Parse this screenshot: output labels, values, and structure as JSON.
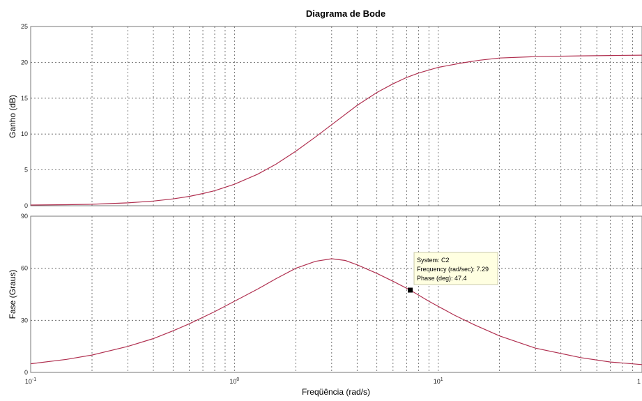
{
  "chart_data": {
    "type": "line",
    "title": "Diagrama de Bode",
    "xlabel": "Freqüência (rad/s)",
    "xscale": "log",
    "xlim": [
      0.1,
      100
    ],
    "x_ticks": [
      {
        "base": "10",
        "exp": "-1"
      },
      {
        "base": "10",
        "exp": "0"
      },
      {
        "base": "10",
        "exp": "1"
      },
      {
        "base": "1",
        "exp": ""
      }
    ],
    "grid": true,
    "line_color": "#b03050",
    "panels": [
      {
        "ylabel": "Ganho (dB)",
        "ylim": [
          0,
          25
        ],
        "yticks": [
          0,
          5,
          10,
          15,
          20,
          25
        ],
        "series": [
          {
            "x": [
              0.1,
              0.15,
              0.2,
              0.3,
              0.4,
              0.5,
              0.6,
              0.7,
              0.8,
              1,
              1.3,
              1.6,
              2,
              2.5,
              3,
              4,
              5,
              6,
              7,
              8,
              10,
              13,
              16,
              20,
              30,
              50,
              70,
              100
            ],
            "y": [
              0.1,
              0.15,
              0.2,
              0.4,
              0.65,
              0.95,
              1.3,
              1.7,
              2.1,
              3.0,
              4.4,
              5.8,
              7.6,
              9.6,
              11.3,
              14.0,
              15.8,
              17.0,
              17.9,
              18.5,
              19.3,
              19.9,
              20.3,
              20.6,
              20.8,
              20.9,
              20.95,
              21.0
            ]
          }
        ]
      },
      {
        "ylabel": "Fase (Graus)",
        "ylim": [
          0,
          90
        ],
        "yticks": [
          0,
          30,
          60,
          90
        ],
        "series": [
          {
            "x": [
              0.1,
              0.15,
              0.2,
              0.3,
              0.4,
              0.5,
              0.6,
              0.8,
              1,
              1.3,
              1.6,
              2,
              2.5,
              3,
              3.5,
              4,
              5,
              6,
              7.29,
              9,
              12,
              15,
              20,
              30,
              50,
              70,
              100
            ],
            "y": [
              5,
              7.5,
              10,
              15,
              19.5,
              24,
              28,
              35,
              41,
              48,
              54,
              60,
              64,
              65.5,
              64.5,
              62,
              57,
              52.5,
              47.4,
              41,
              33,
              27.5,
              21,
              14,
              8.5,
              6,
              4.5
            ]
          }
        ]
      }
    ],
    "datatip": {
      "x": 7.29,
      "y": 47.4,
      "lines": [
        "System: C2",
        "Frequency (rad/sec): 7.29",
        "Phase (deg): 47.4"
      ]
    }
  }
}
